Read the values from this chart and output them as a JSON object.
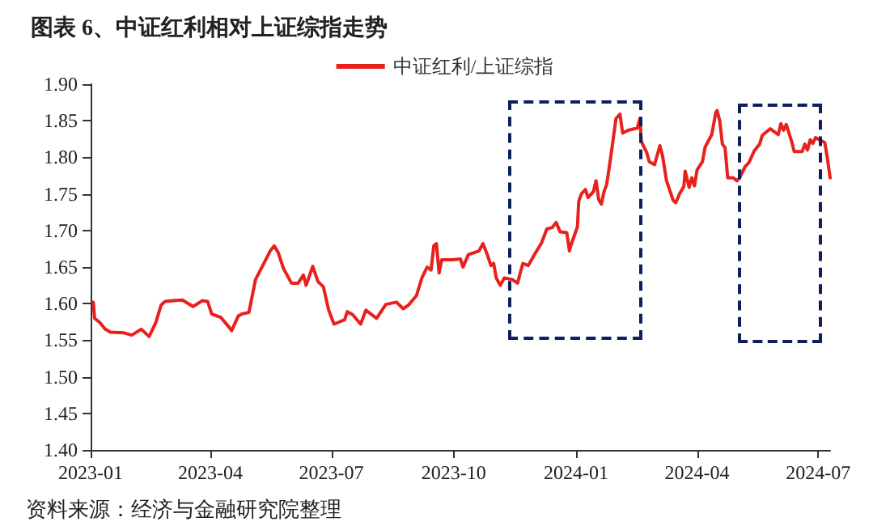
{
  "chart_data": {
    "type": "line",
    "title": "图表 6、中证红利相对上证综指走势",
    "annotations": [
      "资料来源：经济与金融研究院整理"
    ],
    "xlim": [
      "2023-01-01",
      "2024-07-10"
    ],
    "xticks": [
      {
        "value": "2023-01-01",
        "label": "2023-01"
      },
      {
        "value": "2023-04-01",
        "label": "2023-04"
      },
      {
        "value": "2023-07-01",
        "label": "2023-07"
      },
      {
        "value": "2023-10-01",
        "label": "2023-10"
      },
      {
        "value": "2024-01-01",
        "label": "2024-01"
      },
      {
        "value": "2024-04-01",
        "label": "2024-04"
      },
      {
        "value": "2024-07-01",
        "label": "2024-07"
      }
    ],
    "ylim": [
      1.4,
      1.9
    ],
    "yticks": [
      {
        "value": 1.4,
        "label": "1.40"
      },
      {
        "value": 1.45,
        "label": "1.45"
      },
      {
        "value": 1.5,
        "label": "1.50"
      },
      {
        "value": 1.55,
        "label": "1.55"
      },
      {
        "value": 1.6,
        "label": "1.60"
      },
      {
        "value": 1.65,
        "label": "1.65"
      },
      {
        "value": 1.7,
        "label": "1.70"
      },
      {
        "value": 1.75,
        "label": "1.75"
      },
      {
        "value": 1.8,
        "label": "1.80"
      },
      {
        "value": 1.85,
        "label": "1.85"
      },
      {
        "value": 1.9,
        "label": "1.90"
      }
    ],
    "grid": false,
    "legend": "top",
    "marker": "none",
    "line_style": "solid",
    "x": [
      "2023-01-03",
      "2023-01-04",
      "2023-01-08",
      "2023-01-12",
      "2023-01-16",
      "2023-01-26",
      "2023-02-01",
      "2023-02-08",
      "2023-02-14",
      "2023-02-19",
      "2023-02-23",
      "2023-02-26",
      "2023-03-04",
      "2023-03-11",
      "2023-03-19",
      "2023-03-26",
      "2023-03-30",
      "2023-04-02",
      "2023-04-09",
      "2023-04-15",
      "2023-04-17",
      "2023-04-22",
      "2023-04-25",
      "2023-04-30",
      "2023-05-05",
      "2023-05-11",
      "2023-05-16",
      "2023-05-19",
      "2023-05-22",
      "2023-05-26",
      "2023-06-01",
      "2023-06-06",
      "2023-06-10",
      "2023-06-12",
      "2023-06-17",
      "2023-06-21",
      "2023-06-25",
      "2023-06-29",
      "2023-07-03",
      "2023-07-11",
      "2023-07-13",
      "2023-07-17",
      "2023-07-23",
      "2023-07-27",
      "2023-08-04",
      "2023-08-11",
      "2023-08-19",
      "2023-08-24",
      "2023-08-28",
      "2023-09-03",
      "2023-09-07",
      "2023-09-11",
      "2023-09-14",
      "2023-09-16",
      "2023-09-18",
      "2023-09-20",
      "2023-09-22",
      "2023-09-30",
      "2023-10-06",
      "2023-10-08",
      "2023-10-12",
      "2023-10-20",
      "2023-10-23",
      "2023-10-26",
      "2023-10-29",
      "2023-10-31",
      "2023-11-02",
      "2023-11-05",
      "2023-11-08",
      "2023-11-14",
      "2023-11-18",
      "2023-11-20",
      "2023-11-22",
      "2023-11-26",
      "2023-12-01",
      "2023-12-06",
      "2023-12-10",
      "2023-12-14",
      "2023-12-17",
      "2023-12-20",
      "2023-12-25",
      "2023-12-27",
      "2023-12-28",
      "2024-01-02",
      "2024-01-03",
      "2024-01-05",
      "2024-01-08",
      "2024-01-10",
      "2024-01-14",
      "2024-01-16",
      "2024-01-18",
      "2024-01-20",
      "2024-01-22",
      "2024-01-24",
      "2024-01-26",
      "2024-01-28",
      "2024-01-31",
      "2024-02-03",
      "2024-02-05",
      "2024-02-09",
      "2024-02-16",
      "2024-02-18",
      "2024-02-19",
      "2024-02-23",
      "2024-02-25",
      "2024-02-29",
      "2024-03-04",
      "2024-03-06",
      "2024-03-09",
      "2024-03-14",
      "2024-03-16",
      "2024-03-19",
      "2024-03-22",
      "2024-03-23",
      "2024-03-26",
      "2024-03-28",
      "2024-03-30",
      "2024-04-01",
      "2024-04-05",
      "2024-04-07",
      "2024-04-12",
      "2024-04-15",
      "2024-04-16",
      "2024-04-18",
      "2024-04-20",
      "2024-04-22",
      "2024-04-24",
      "2024-04-28",
      "2024-05-01",
      "2024-05-03",
      "2024-05-07",
      "2024-05-10",
      "2024-05-14",
      "2024-05-18",
      "2024-05-20",
      "2024-05-26",
      "2024-06-01",
      "2024-06-03",
      "2024-06-05",
      "2024-06-07",
      "2024-06-11",
      "2024-06-13",
      "2024-06-19",
      "2024-06-21",
      "2024-06-23",
      "2024-06-25",
      "2024-06-27",
      "2024-06-29",
      "2024-07-02",
      "2024-07-06",
      "2024-07-08",
      "2024-07-10"
    ],
    "series": [
      {
        "name": "中证红利/上证综指",
        "color": "#e8211d",
        "values": [
          1.602,
          1.58,
          1.574,
          1.565,
          1.561,
          1.56,
          1.557,
          1.565,
          1.555,
          1.574,
          1.598,
          1.603,
          1.604,
          1.605,
          1.596,
          1.604,
          1.603,
          1.586,
          1.581,
          1.568,
          1.563,
          1.583,
          1.586,
          1.588,
          1.633,
          1.654,
          1.672,
          1.679,
          1.67,
          1.648,
          1.628,
          1.628,
          1.639,
          1.625,
          1.651,
          1.63,
          1.623,
          1.591,
          1.572,
          1.578,
          1.589,
          1.585,
          1.572,
          1.591,
          1.58,
          1.599,
          1.602,
          1.593,
          1.598,
          1.611,
          1.635,
          1.65,
          1.646,
          1.679,
          1.682,
          1.642,
          1.66,
          1.66,
          1.661,
          1.65,
          1.667,
          1.672,
          1.682,
          1.668,
          1.652,
          1.655,
          1.635,
          1.625,
          1.635,
          1.633,
          1.628,
          1.642,
          1.655,
          1.652,
          1.668,
          1.683,
          1.702,
          1.704,
          1.711,
          1.698,
          1.697,
          1.672,
          1.679,
          1.705,
          1.74,
          1.75,
          1.756,
          1.745,
          1.753,
          1.768,
          1.742,
          1.736,
          1.753,
          1.763,
          1.787,
          1.813,
          1.853,
          1.859,
          1.833,
          1.837,
          1.84,
          1.853,
          1.822,
          1.807,
          1.794,
          1.79,
          1.816,
          1.802,
          1.768,
          1.741,
          1.738,
          1.751,
          1.76,
          1.781,
          1.759,
          1.772,
          1.761,
          1.783,
          1.794,
          1.814,
          1.831,
          1.861,
          1.864,
          1.85,
          1.818,
          1.813,
          1.772,
          1.772,
          1.768,
          1.772,
          1.787,
          1.793,
          1.809,
          1.818,
          1.83,
          1.839,
          1.831,
          1.846,
          1.837,
          1.845,
          1.822,
          1.808,
          1.808,
          1.818,
          1.81,
          1.824,
          1.819,
          1.827,
          1.824,
          1.82,
          1.798,
          1.772
        ]
      }
    ]
  }
}
